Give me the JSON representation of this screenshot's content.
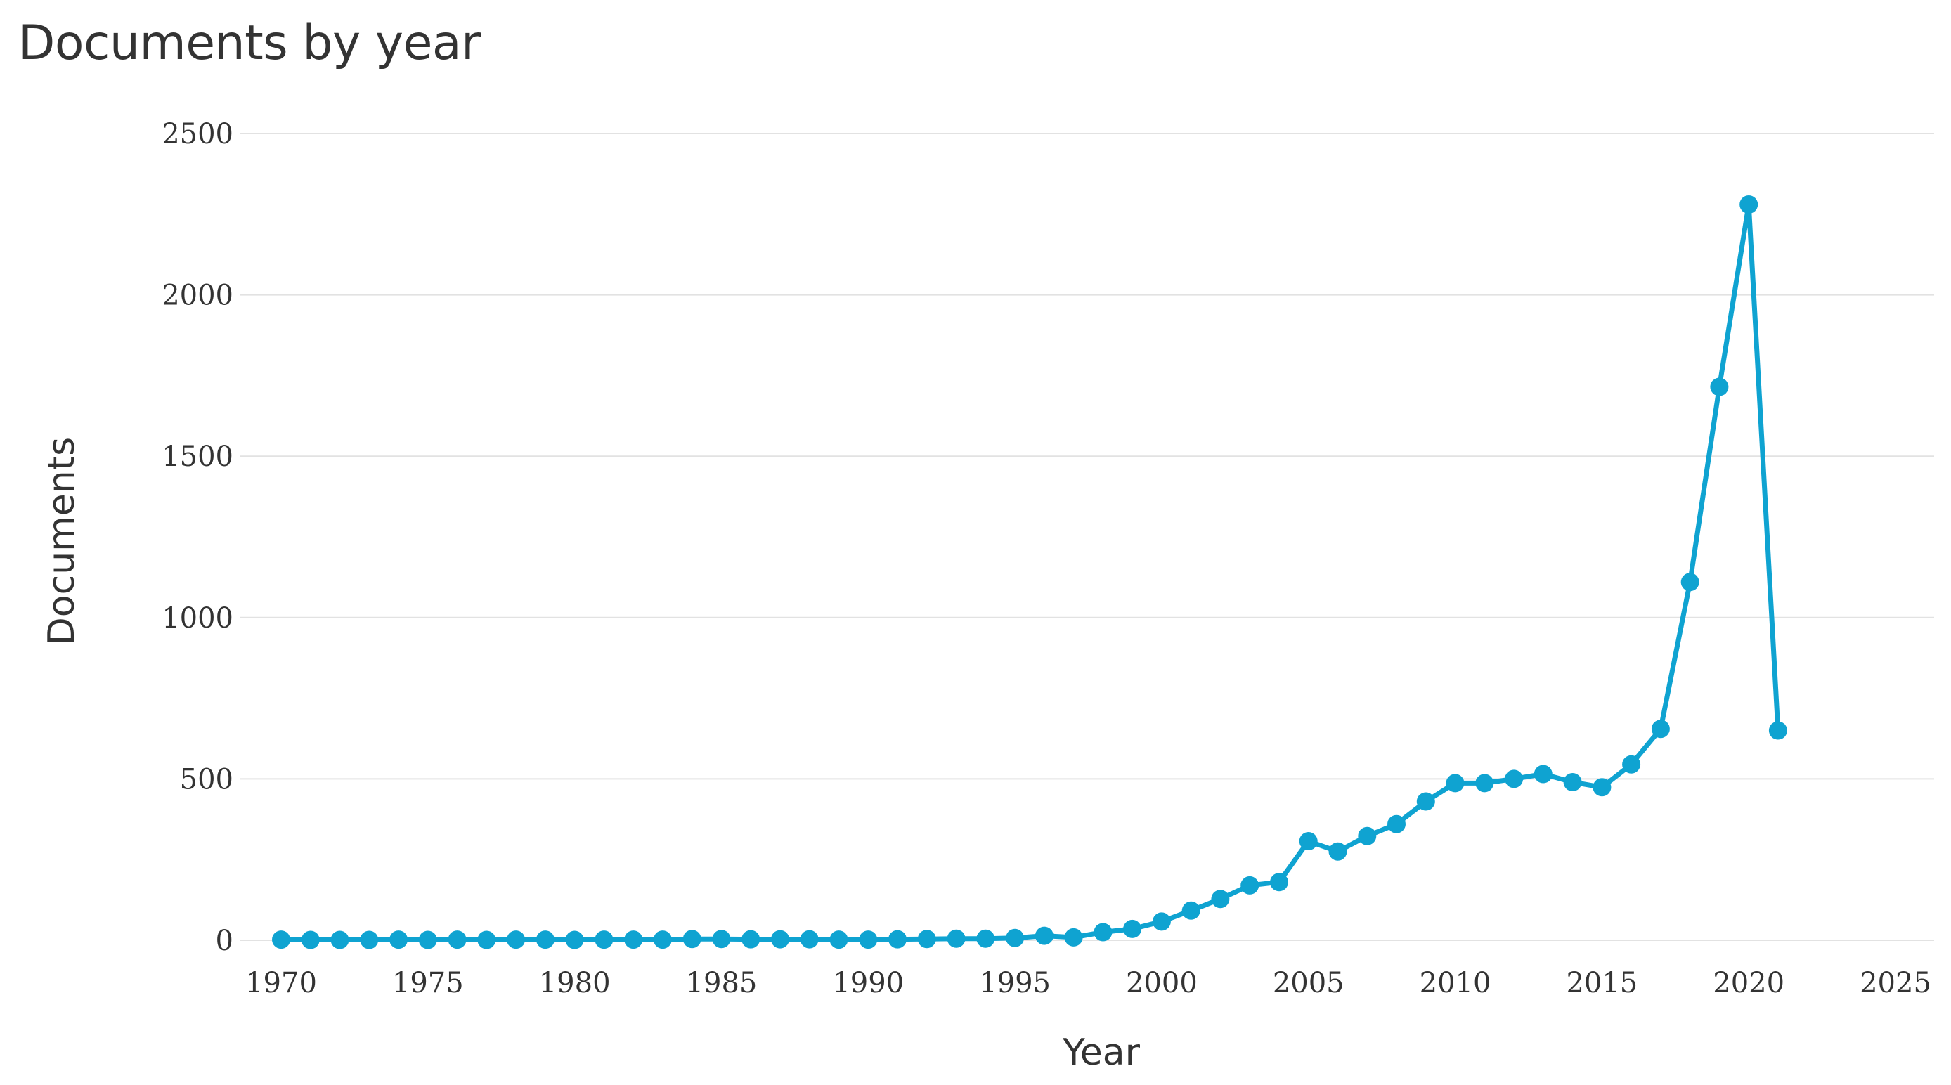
{
  "title": "Documents by year",
  "colors": {
    "series": "#0fa3d1",
    "grid": "#e2e2e2",
    "text": "#333333"
  },
  "chart_data": {
    "type": "line",
    "title": "Documents by year",
    "xlabel": "Year",
    "ylabel": "Documents",
    "xlim": [
      1970,
      2025
    ],
    "ylim": [
      0,
      2500
    ],
    "xticks": [
      1970,
      1975,
      1980,
      1985,
      1990,
      1995,
      2000,
      2005,
      2010,
      2015,
      2020,
      2025
    ],
    "yticks": [
      0,
      500,
      1000,
      1500,
      2000,
      2500
    ],
    "grid": "horizontal",
    "legend": "none",
    "series": [
      {
        "x": [
          1970,
          1971,
          1972,
          1973,
          1974,
          1975,
          1976,
          1977,
          1978,
          1979,
          1980,
          1981,
          1982,
          1983,
          1984,
          1985,
          1986,
          1987,
          1988,
          1989,
          1990,
          1991,
          1992,
          1993,
          1994,
          1995,
          1996,
          1997,
          1998,
          1999,
          2000,
          2001,
          2002,
          2003,
          2004,
          2005,
          2006,
          2007,
          2008,
          2009,
          2010,
          2011,
          2012,
          2013,
          2014,
          2015,
          2016,
          2017,
          2018,
          2019,
          2020,
          2021
        ],
        "values": [
          2,
          1,
          1,
          1,
          2,
          1,
          2,
          1,
          2,
          2,
          1,
          2,
          2,
          2,
          4,
          4,
          3,
          3,
          3,
          2,
          2,
          3,
          4,
          5,
          5,
          7,
          14,
          9,
          25,
          35,
          58,
          92,
          128,
          170,
          180,
          307,
          275,
          323,
          360,
          430,
          487,
          487,
          500,
          515,
          490,
          474,
          545,
          655,
          1110,
          1715,
          2280,
          650
        ]
      }
    ]
  }
}
